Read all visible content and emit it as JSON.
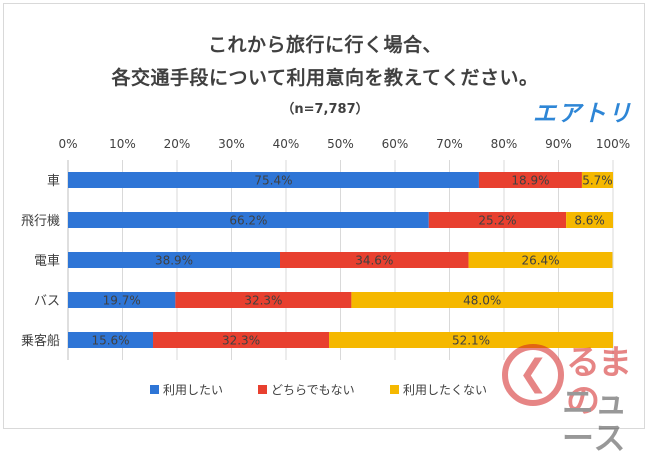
{
  "chart_data": {
    "type": "bar",
    "orientation": "horizontal-stacked-percent",
    "title_line1": "これから旅行に行く場合、",
    "title_line2": "各交通手段について利用意向を教えてください。",
    "subtitle": "（n=7,787）",
    "categories": [
      "車",
      "飛行機",
      "電車",
      "バス",
      "乗客船"
    ],
    "series": [
      {
        "name": "利用したい",
        "color": "#2e75d6",
        "values": [
          75.4,
          66.2,
          38.9,
          19.7,
          15.6
        ],
        "labels": [
          "75.4%",
          "66.2%",
          "38.9%",
          "19.7%",
          "15.6%"
        ]
      },
      {
        "name": "どちらでもない",
        "color": "#e8402f",
        "values": [
          18.9,
          25.2,
          34.6,
          32.3,
          32.3
        ],
        "labels": [
          "18.9%",
          "25.2%",
          "34.6%",
          "32.3%",
          "32.3%"
        ]
      },
      {
        "name": "利用したくない",
        "color": "#f5b800",
        "values": [
          5.7,
          8.6,
          26.4,
          48.0,
          52.1
        ],
        "labels": [
          "5.7%",
          "8.6%",
          "26.4%",
          "48.0%",
          "52.1%"
        ]
      }
    ],
    "xticks": [
      "0%",
      "10%",
      "20%",
      "30%",
      "40%",
      "50%",
      "60%",
      "70%",
      "80%",
      "90%",
      "100%"
    ],
    "xlim": [
      0,
      100
    ],
    "legend_position": "bottom",
    "grid": true
  },
  "brand": "エアトリ",
  "watermark": {
    "line1": "るまの",
    "line2": "ニュース",
    "chevron": "❮"
  }
}
